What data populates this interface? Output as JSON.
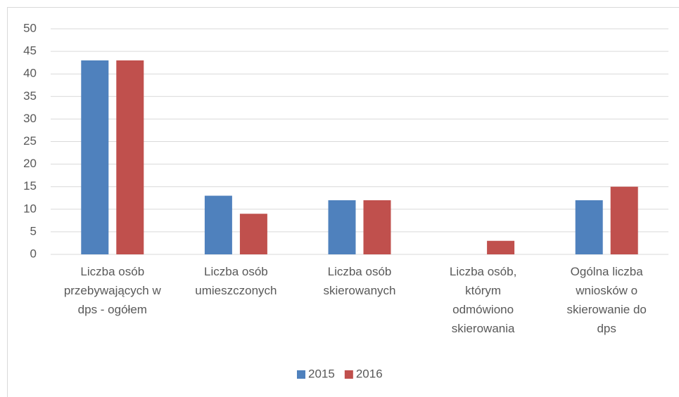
{
  "chart_data": {
    "type": "bar",
    "categories": [
      "Liczba osób przebywających w dps - ogółem",
      "Liczba osób umieszczonych",
      "Liczba osób skierowanych",
      "Liczba osób, którym odmówiono skierowania",
      "Ogólna liczba wniosków o skierowanie do dps"
    ],
    "series": [
      {
        "name": "2015",
        "color": "#4f81bd",
        "values": [
          43,
          13,
          12,
          0,
          12
        ]
      },
      {
        "name": "2016",
        "color": "#c0504d",
        "values": [
          43,
          9,
          12,
          3,
          15
        ]
      }
    ],
    "ylim": [
      0,
      50
    ],
    "yticks": [
      0,
      5,
      10,
      15,
      20,
      25,
      30,
      35,
      40,
      45,
      50
    ],
    "grid": true,
    "legend": "bottom"
  }
}
